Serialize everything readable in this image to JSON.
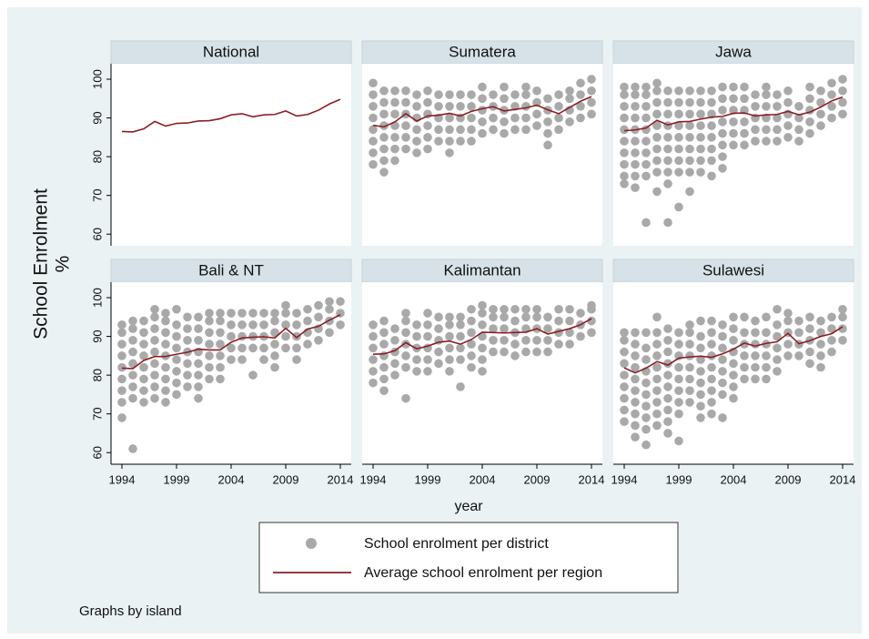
{
  "chart_data": {
    "type": "facet-scatter-line",
    "ylabel": [
      "School Enrolment",
      "%"
    ],
    "xlabel": "year",
    "note": "Graphs by island",
    "x": [
      1994,
      1995,
      1996,
      1997,
      1998,
      1999,
      2000,
      2001,
      2002,
      2003,
      2004,
      2005,
      2006,
      2007,
      2008,
      2009,
      2010,
      2011,
      2012,
      2013,
      2014
    ],
    "xlim": [
      1993,
      2015
    ],
    "xticks": [
      1994,
      1999,
      2004,
      2009,
      2014
    ],
    "ylim": [
      57,
      104
    ],
    "yticks": [
      60,
      70,
      80,
      90,
      100
    ],
    "legend": [
      {
        "name": "School enrolment per district",
        "type": "scatter",
        "color": "#a9a9a9"
      },
      {
        "name": "Average school enrolment per region",
        "type": "line",
        "color": "#8b1e24"
      }
    ],
    "panels": [
      {
        "title": "National",
        "values": [
          86.5,
          86.4,
          87.2,
          89.1,
          87.9,
          88.6,
          88.7,
          89.2,
          89.3,
          89.8,
          90.8,
          91.1,
          90.3,
          90.8,
          90.9,
          91.8,
          90.5,
          90.9,
          92,
          93.6,
          94.8
        ]
      },
      {
        "title": "Sumatera",
        "values": [
          88.1,
          87.7,
          89,
          91.1,
          89.2,
          90.5,
          90.7,
          91.2,
          90.5,
          91.7,
          92.4,
          92.9,
          91.8,
          92.2,
          92.6,
          93.3,
          92.1,
          91.1,
          92.7,
          94.3,
          95.5
        ],
        "points": [
          [
            78,
            81,
            84,
            87,
            90,
            93,
            96,
            99
          ],
          [
            76,
            79,
            82,
            85,
            88,
            91,
            94,
            97
          ],
          [
            79,
            82,
            85,
            88,
            91,
            94,
            97
          ],
          [
            82,
            85,
            88,
            91,
            94,
            97
          ],
          [
            81,
            84,
            87,
            90,
            93,
            96
          ],
          [
            82,
            85,
            88,
            91,
            94,
            97
          ],
          [
            84,
            87,
            90,
            93,
            96
          ],
          [
            81,
            84,
            87,
            90,
            93,
            96
          ],
          [
            84,
            87,
            90,
            93,
            96
          ],
          [
            84,
            87,
            90,
            93,
            96
          ],
          [
            86,
            89,
            92,
            95,
            98
          ],
          [
            87,
            90,
            93,
            96
          ],
          [
            86,
            89,
            92,
            95,
            98
          ],
          [
            87,
            90,
            93,
            96
          ],
          [
            87,
            90,
            93,
            96,
            98
          ],
          [
            88,
            91,
            94,
            97
          ],
          [
            83,
            86,
            89,
            92,
            95
          ],
          [
            87,
            90,
            93,
            96
          ],
          [
            89,
            92,
            95,
            97
          ],
          [
            90,
            93,
            96,
            99
          ],
          [
            91,
            94,
            97,
            100
          ]
        ]
      },
      {
        "title": "Jawa",
        "values": [
          86.7,
          86.9,
          87.4,
          89.4,
          88.2,
          89,
          89.1,
          89.7,
          90.2,
          90.4,
          91.2,
          91.3,
          90.5,
          90.8,
          90.9,
          91.7,
          90.8,
          91.5,
          92.8,
          94.4,
          95.4
        ],
        "points": [
          [
            73,
            75,
            78,
            81,
            84,
            87,
            90,
            93,
            96,
            98
          ],
          [
            72,
            75,
            78,
            81,
            84,
            87,
            90,
            93,
            96,
            98
          ],
          [
            63,
            75,
            78,
            81,
            84,
            87,
            90,
            93,
            96,
            98
          ],
          [
            71,
            76,
            79,
            82,
            85,
            88,
            91,
            94,
            97,
            99
          ],
          [
            63,
            73,
            76,
            79,
            82,
            85,
            88,
            91,
            94,
            97
          ],
          [
            67,
            76,
            79,
            82,
            85,
            88,
            91,
            94,
            97
          ],
          [
            71,
            76,
            79,
            82,
            85,
            88,
            91,
            94,
            97
          ],
          [
            76,
            79,
            82,
            85,
            88,
            91,
            94,
            97
          ],
          [
            75,
            79,
            82,
            85,
            88,
            91,
            94,
            97
          ],
          [
            77,
            80,
            83,
            86,
            89,
            92,
            95,
            98
          ],
          [
            83,
            86,
            89,
            92,
            95,
            98
          ],
          [
            83,
            86,
            89,
            92,
            95,
            98
          ],
          [
            84,
            87,
            90,
            93,
            96
          ],
          [
            84,
            87,
            90,
            93,
            96,
            98
          ],
          [
            84,
            87,
            90,
            93,
            96
          ],
          [
            85,
            88,
            91,
            94,
            97
          ],
          [
            84,
            87,
            90,
            93
          ],
          [
            86,
            89,
            92,
            95,
            98
          ],
          [
            88,
            91,
            94,
            97
          ],
          [
            90,
            93,
            96,
            99
          ],
          [
            91,
            94,
            97,
            100
          ]
        ]
      },
      {
        "title": "Bali & NT",
        "values": [
          81.8,
          81.7,
          83.8,
          84.8,
          84.8,
          85.4,
          85.9,
          86.7,
          86.5,
          86.5,
          88.5,
          89.6,
          89.8,
          89.9,
          89.6,
          92.1,
          89.7,
          91.9,
          92.6,
          94.2,
          95.6
        ],
        "points": [
          [
            69,
            73,
            76,
            79,
            82,
            85,
            88,
            91,
            93
          ],
          [
            61,
            74,
            77,
            80,
            83,
            86,
            89,
            92,
            94
          ],
          [
            73,
            76,
            79,
            82,
            85,
            88,
            91,
            94
          ],
          [
            74,
            77,
            80,
            83,
            86,
            89,
            92,
            95,
            97
          ],
          [
            73,
            76,
            79,
            82,
            85,
            88,
            91,
            94,
            96
          ],
          [
            75,
            78,
            81,
            84,
            87,
            90,
            93,
            97
          ],
          [
            77,
            80,
            83,
            86,
            89,
            92,
            95
          ],
          [
            74,
            77,
            80,
            83,
            86,
            89,
            92,
            95
          ],
          [
            79,
            82,
            85,
            88,
            91,
            94,
            96
          ],
          [
            79,
            82,
            85,
            88,
            91,
            94,
            96
          ],
          [
            84,
            87,
            90,
            93,
            96
          ],
          [
            84,
            87,
            90,
            93,
            96
          ],
          [
            80,
            87,
            90,
            93,
            96
          ],
          [
            84,
            87,
            90,
            93,
            96
          ],
          [
            82,
            85,
            88,
            91,
            94,
            96
          ],
          [
            87,
            90,
            93,
            96,
            98
          ],
          [
            84,
            87,
            90,
            93,
            96
          ],
          [
            88,
            91,
            94,
            97
          ],
          [
            89,
            92,
            95,
            98
          ],
          [
            91,
            94,
            97,
            99
          ],
          [
            93,
            96,
            99
          ]
        ]
      },
      {
        "title": "Kalimantan",
        "values": [
          85.4,
          85.5,
          86.3,
          88.4,
          86.8,
          87.5,
          88.5,
          88.8,
          88,
          89.2,
          91.1,
          91,
          90.9,
          91,
          91.1,
          92,
          90.6,
          91.3,
          92,
          93,
          94.6
        ],
        "points": [
          [
            78,
            81,
            84,
            87,
            90,
            93
          ],
          [
            76,
            79,
            82,
            85,
            88,
            91,
            94
          ],
          [
            80,
            83,
            86,
            89,
            92
          ],
          [
            74,
            82,
            85,
            88,
            91,
            94,
            96
          ],
          [
            81,
            84,
            87,
            90,
            93
          ],
          [
            81,
            84,
            87,
            90,
            93,
            96
          ],
          [
            83,
            86,
            89,
            92,
            95
          ],
          [
            81,
            84,
            87,
            90,
            93,
            95
          ],
          [
            77,
            84,
            87,
            90,
            93,
            95
          ],
          [
            82,
            85,
            88,
            91,
            94,
            97
          ],
          [
            81,
            84,
            87,
            90,
            93,
            96,
            98
          ],
          [
            86,
            89,
            92,
            95,
            97
          ],
          [
            86,
            89,
            92,
            95,
            97
          ],
          [
            85,
            88,
            91,
            94,
            97
          ],
          [
            86,
            89,
            92,
            95,
            97
          ],
          [
            86,
            89,
            92,
            95,
            97
          ],
          [
            86,
            89,
            92,
            95
          ],
          [
            88,
            91,
            94,
            97
          ],
          [
            88,
            91,
            94,
            97
          ],
          [
            90,
            93,
            96
          ],
          [
            91,
            94,
            97,
            98
          ]
        ]
      },
      {
        "title": "Sulawesi",
        "values": [
          81.9,
          80.6,
          81.8,
          83.5,
          82.6,
          84.4,
          84.7,
          84.9,
          84.6,
          85.5,
          86.7,
          88.3,
          87.5,
          88.2,
          88.6,
          90.8,
          88.1,
          88.9,
          90,
          90.7,
          92.5
        ],
        "points": [
          [
            68,
            71,
            74,
            77,
            80,
            83,
            86,
            89,
            91
          ],
          [
            64,
            67,
            70,
            73,
            76,
            79,
            82,
            85,
            88,
            91
          ],
          [
            62,
            66,
            69,
            72,
            75,
            78,
            81,
            84,
            87,
            91
          ],
          [
            67,
            70,
            73,
            76,
            79,
            82,
            85,
            88,
            91,
            95
          ],
          [
            65,
            68,
            71,
            74,
            77,
            80,
            83,
            86,
            89,
            92
          ],
          [
            63,
            70,
            73,
            76,
            79,
            82,
            85,
            88,
            91
          ],
          [
            73,
            76,
            79,
            82,
            85,
            88,
            91,
            93
          ],
          [
            69,
            72,
            75,
            78,
            81,
            84,
            87,
            90,
            94
          ],
          [
            70,
            73,
            76,
            79,
            82,
            85,
            88,
            91,
            94
          ],
          [
            69,
            75,
            78,
            81,
            84,
            87,
            90,
            93
          ],
          [
            74,
            77,
            80,
            83,
            86,
            89,
            92,
            95
          ],
          [
            79,
            82,
            85,
            88,
            91,
            95
          ],
          [
            79,
            82,
            85,
            88,
            91,
            94
          ],
          [
            79,
            82,
            85,
            88,
            91,
            95
          ],
          [
            81,
            84,
            87,
            90,
            93,
            97
          ],
          [
            85,
            88,
            91,
            94,
            96
          ],
          [
            85,
            88,
            91,
            94
          ],
          [
            83,
            86,
            89,
            92,
            95
          ],
          [
            82,
            85,
            88,
            91,
            94
          ],
          [
            86,
            89,
            92,
            95
          ],
          [
            89,
            92,
            95,
            97
          ]
        ]
      }
    ]
  }
}
